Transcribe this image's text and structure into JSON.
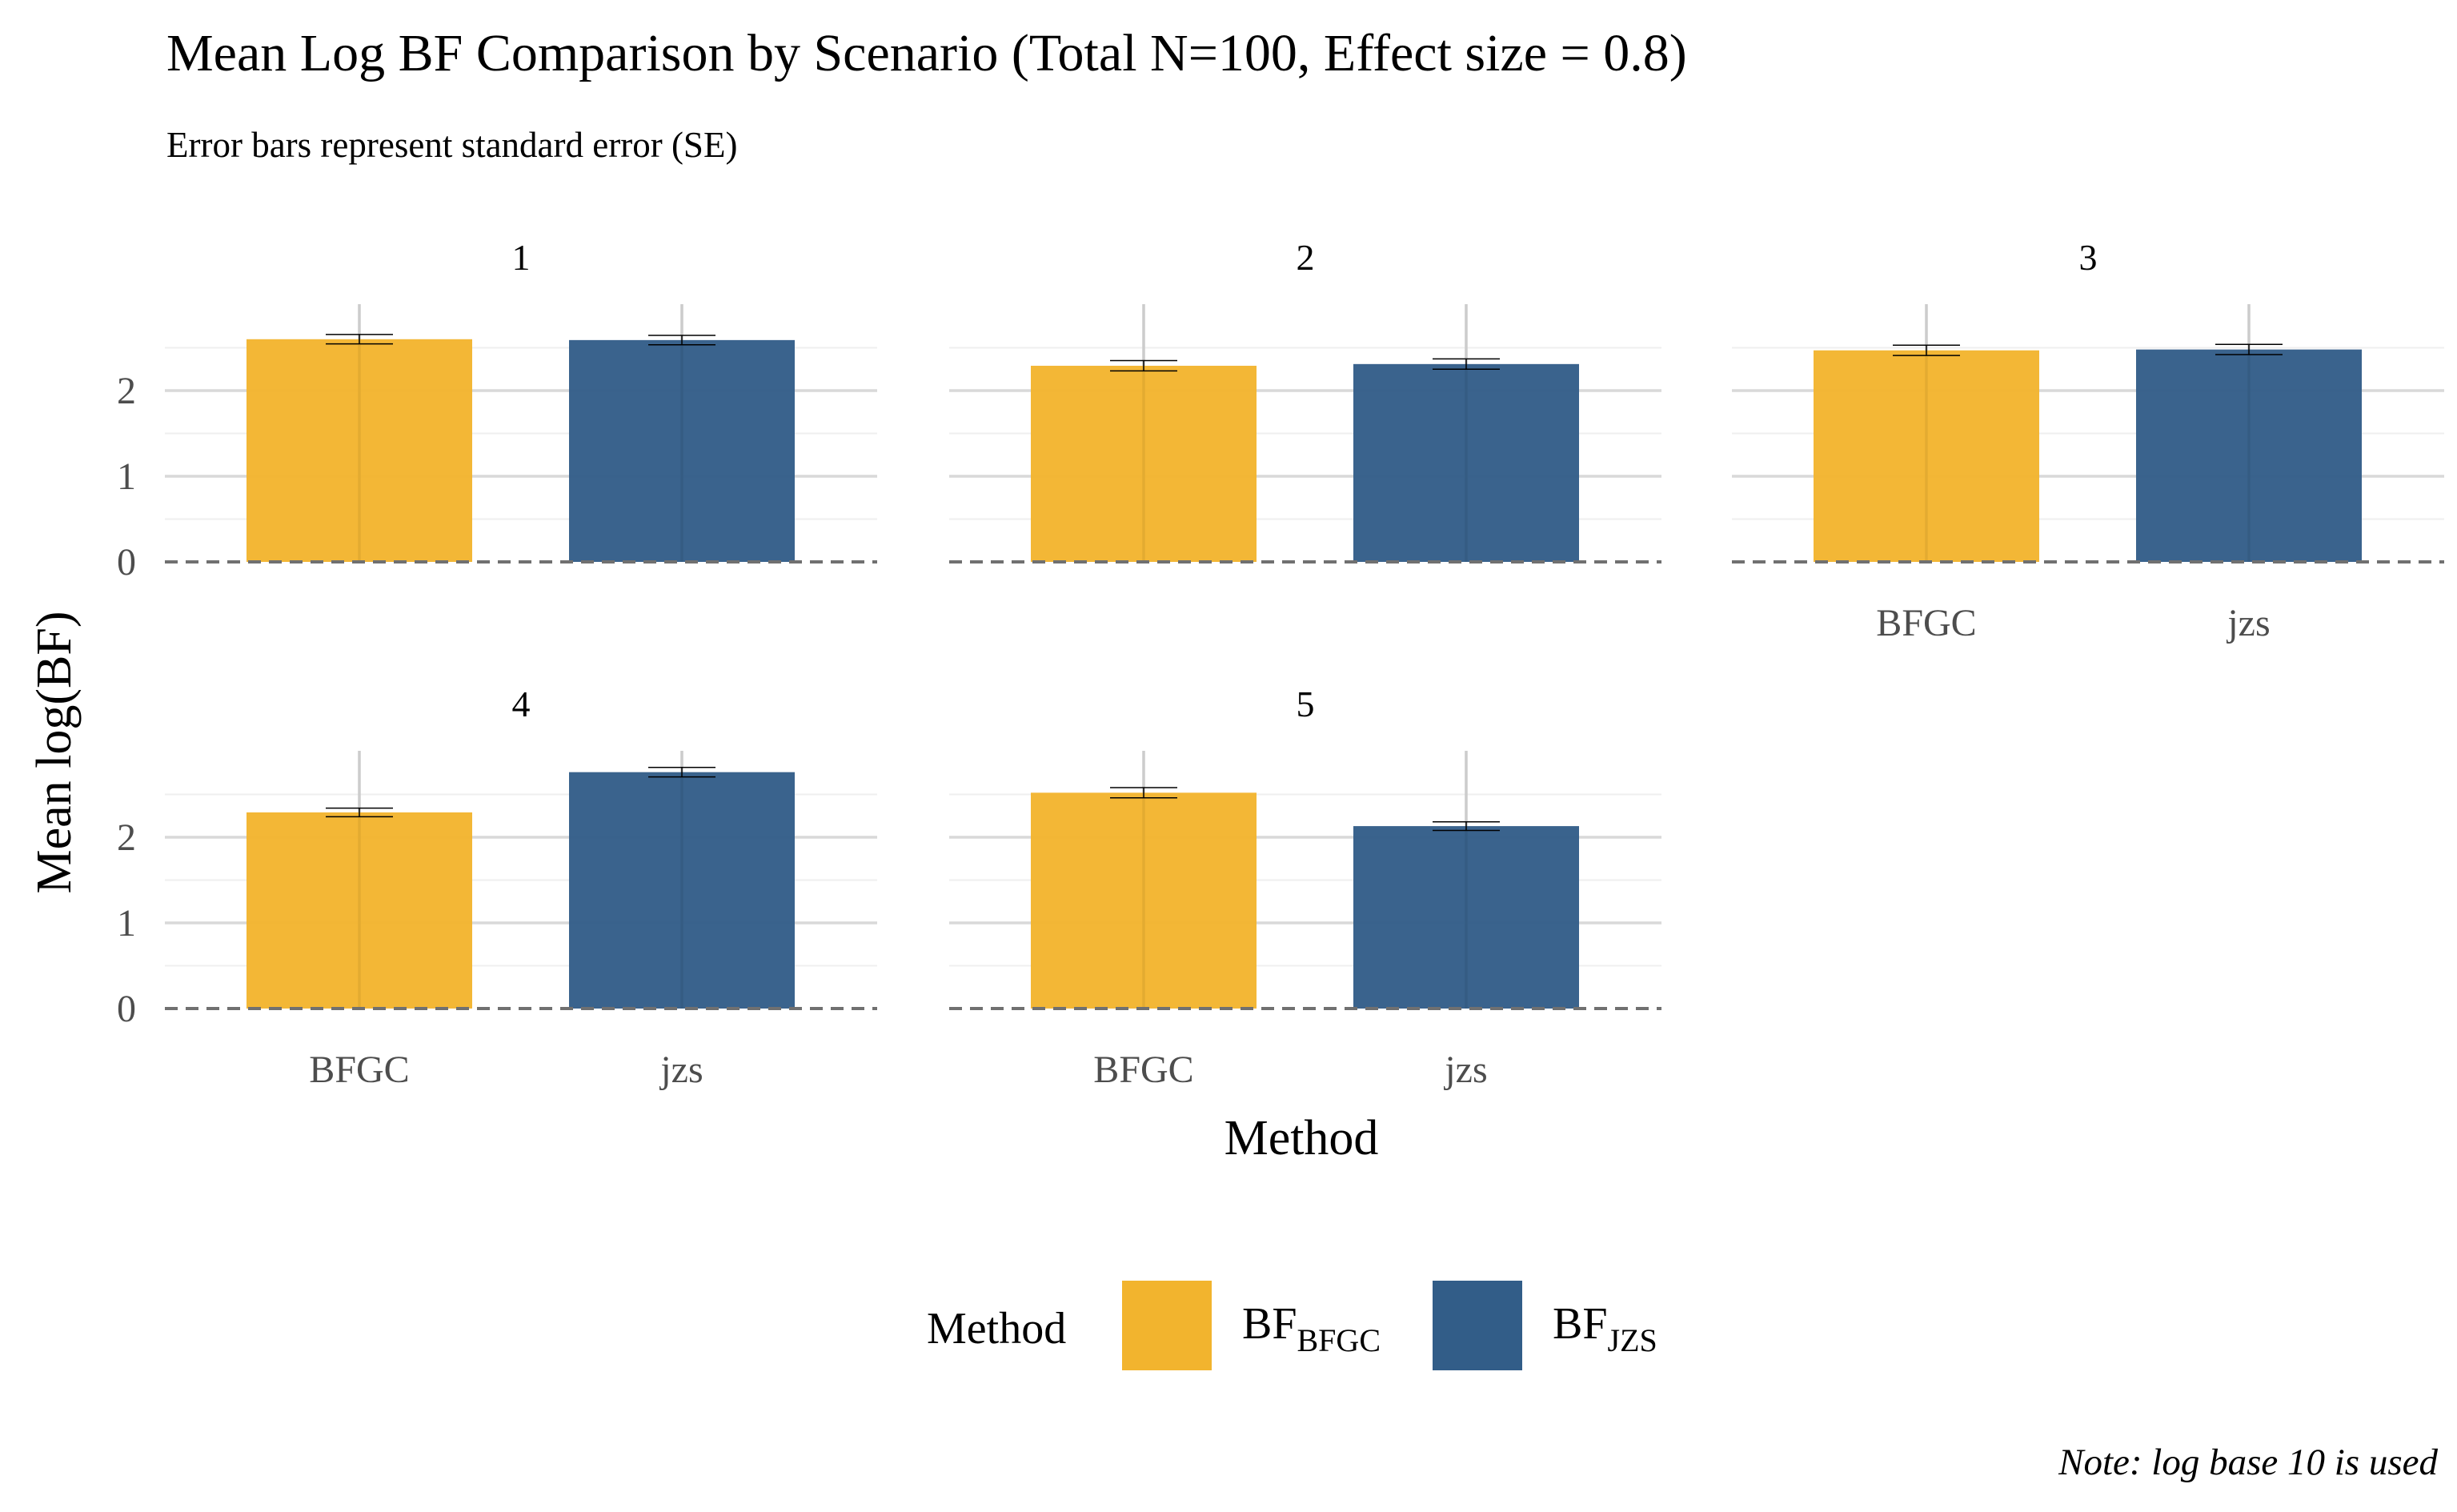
{
  "chart_data": {
    "type": "bar",
    "title": "Mean Log BF Comparison by Scenario (Total N=100, Effect size = 0.8)",
    "subtitle": "Error bars represent standard error (SE)",
    "xlabel": "Method",
    "ylabel": "Mean log(BF)",
    "caption": "Note: log base 10 is used",
    "categories": [
      "BFGC",
      "jzs"
    ],
    "ylim": [
      0,
      2.8
    ],
    "yticks": [
      0,
      1,
      2
    ],
    "reference_line": 0,
    "grid": true,
    "legend": {
      "title": "Method",
      "placement": "bottom",
      "entries": [
        {
          "base": "BF",
          "sub": "BFGC",
          "color": "#F2B42E"
        },
        {
          "base": "BF",
          "sub": "JZS",
          "color": "#325D88"
        }
      ]
    },
    "panels": [
      {
        "label": "1",
        "values": [
          2.6,
          2.59
        ],
        "se": [
          0.055,
          0.055
        ]
      },
      {
        "label": "2",
        "values": [
          2.29,
          2.31
        ],
        "se": [
          0.06,
          0.06
        ]
      },
      {
        "label": "3",
        "values": [
          2.47,
          2.48
        ],
        "se": [
          0.06,
          0.06
        ]
      },
      {
        "label": "4",
        "values": [
          2.29,
          2.76
        ],
        "se": [
          0.05,
          0.055
        ]
      },
      {
        "label": "5",
        "values": [
          2.52,
          2.13
        ],
        "se": [
          0.06,
          0.05
        ]
      }
    ]
  }
}
